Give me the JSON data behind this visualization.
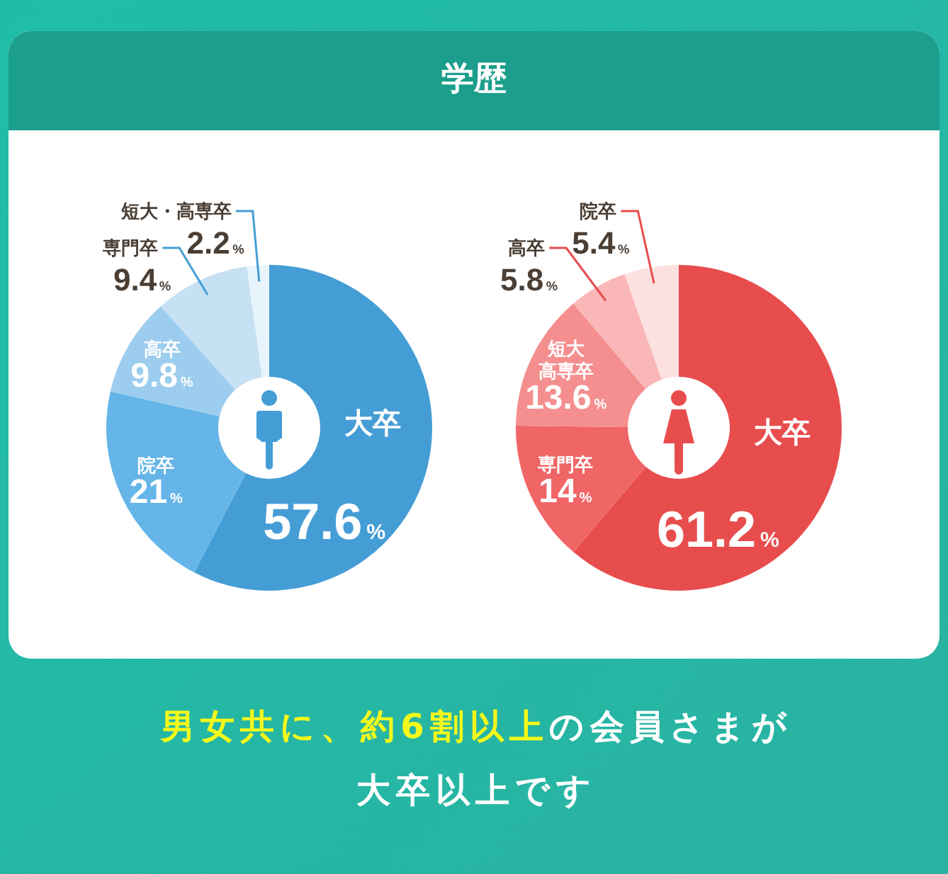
{
  "chart_data": [
    {
      "type": "donut",
      "title": "学歴",
      "categories": [
        "大卒",
        "院卒",
        "高卒",
        "専門卒",
        "短大・高専卒"
      ],
      "values": [
        57.6,
        21,
        9.8,
        9.4,
        2.2
      ],
      "value_labels": [
        "57.6%",
        "21%",
        "9.8%",
        "9.4%",
        "2.2%"
      ],
      "colors": [
        "#459dd6",
        "#65b5e8",
        "#9dcdee",
        "#c6e1f3",
        "#e8f4fc"
      ]
    },
    {
      "type": "donut",
      "categories": [
        "大卒",
        "専門卒",
        "短大高専卒",
        "高卒",
        "院卒"
      ],
      "values": [
        61.2,
        14,
        13.6,
        5.8,
        5.4
      ],
      "value_labels": [
        "61.2%",
        "14%",
        "13.6%",
        "5.8%",
        "5.4%"
      ],
      "colors": [
        "#e84d4e",
        "#f06565",
        "#f58f8f",
        "#f9b7b7",
        "#fde0e0"
      ],
      "annotations": [
        "男女共に、約6割以上",
        "の会員さまが",
        "大卒以上です"
      ]
    }
  ]
}
